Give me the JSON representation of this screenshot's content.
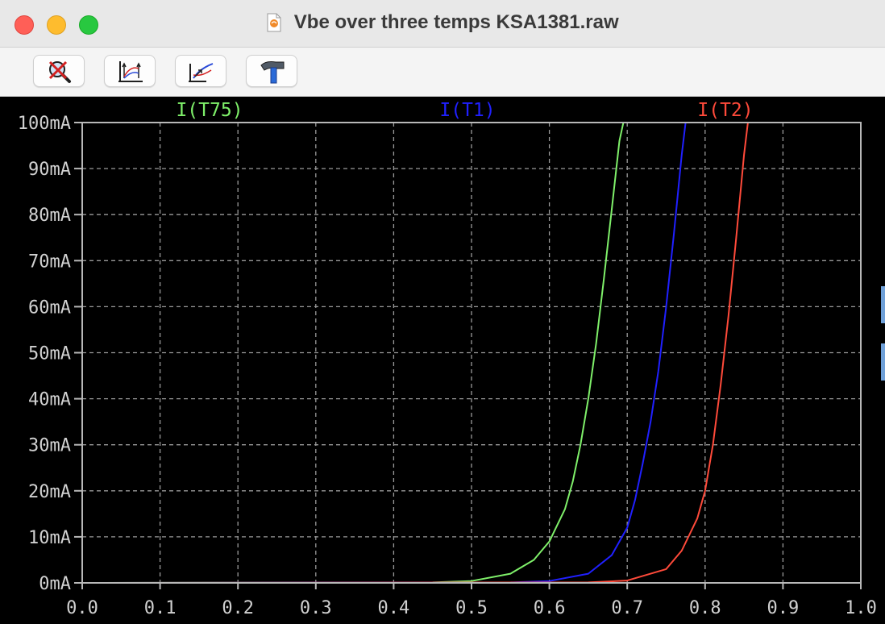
{
  "window": {
    "title": "Vbe over three temps KSA1381.raw"
  },
  "toolbar": {
    "buttons": [
      {
        "icon": "zoom-cancel-icon"
      },
      {
        "icon": "autorange-icon"
      },
      {
        "icon": "pan-icon"
      },
      {
        "icon": "hammer-icon"
      }
    ]
  },
  "colors": {
    "plot_background": "#000000",
    "grid": "#9a9a9a",
    "frame": "#b8b8b8",
    "axis_text": "#d0d0d0"
  },
  "chart_data": {
    "type": "line",
    "grid": true,
    "legend_placement": "top",
    "xlim": [
      0.0,
      1.0
    ],
    "ylim": [
      0,
      100
    ],
    "x_ticks": [
      "0.0",
      "0.1",
      "0.2",
      "0.3",
      "0.4",
      "0.5",
      "0.6",
      "0.7",
      "0.8",
      "0.9",
      "1.0"
    ],
    "y_ticks": [
      "0mA",
      "10mA",
      "20mA",
      "30mA",
      "40mA",
      "50mA",
      "60mA",
      "70mA",
      "80mA",
      "90mA",
      "100mA"
    ],
    "series": [
      {
        "name": "I(T75)",
        "color": "#7ff06a",
        "x": [
          0.0,
          0.45,
          0.5,
          0.55,
          0.58,
          0.6,
          0.62,
          0.63,
          0.64,
          0.65,
          0.66,
          0.67,
          0.68,
          0.69,
          0.695
        ],
        "y": [
          0,
          0.1,
          0.4,
          2,
          5,
          9,
          16,
          22,
          30,
          40,
          52,
          66,
          81,
          96,
          100
        ]
      },
      {
        "name": "I(T1)",
        "color": "#2020ff",
        "x": [
          0.0,
          0.55,
          0.6,
          0.65,
          0.68,
          0.7,
          0.71,
          0.72,
          0.73,
          0.74,
          0.75,
          0.76,
          0.77,
          0.775
        ],
        "y": [
          0,
          0.1,
          0.4,
          2,
          6,
          12,
          18,
          26,
          35,
          46,
          60,
          76,
          93,
          100
        ]
      },
      {
        "name": "I(T2)",
        "color": "#ff4a3a",
        "x": [
          0.0,
          0.65,
          0.7,
          0.75,
          0.77,
          0.79,
          0.8,
          0.81,
          0.82,
          0.83,
          0.84,
          0.85,
          0.855
        ],
        "y": [
          0,
          0.1,
          0.5,
          3,
          7,
          14,
          20,
          30,
          43,
          58,
          75,
          93,
          100
        ]
      }
    ]
  }
}
